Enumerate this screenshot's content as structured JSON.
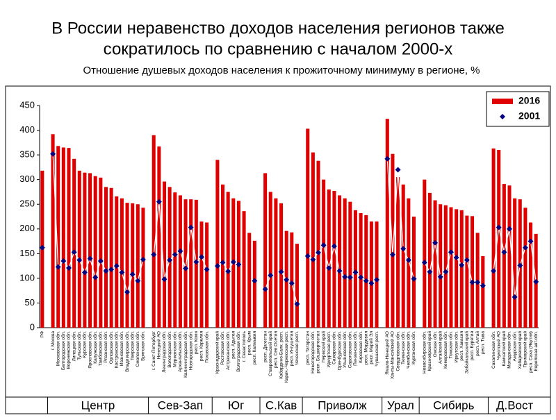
{
  "chart_data": {
    "type": "bar",
    "title": [
      "В России неравенство доходов населения регионов также",
      "сократилось по сравнению с началом 2000-х"
    ],
    "subtitle": "Отношение душевых доходов населения к прожиточному минимуму в регионе, %",
    "categories": [
      "РФ",
      null,
      "г. Москва",
      "Московская обл.",
      "Белгородская обл.",
      "Воронежская обл.",
      "Липецкая обл.",
      "Тульская обл.",
      "Курская обл.",
      "Ярославская обл.",
      "Калужская обл.",
      "Тамбовская обл.",
      "Рязанская обл.",
      "Орловская обл.",
      "Костромская обл.",
      "Ивановская обл.",
      "Владимирская обл.",
      "Тверская обл.",
      "Смоленская обл.",
      "Брянская обл.",
      null,
      "г. Санкт-Петербург",
      "Ненецкий АО",
      "Ленинградская обл.",
      "Вологодская обл.",
      "Мурманская обл.",
      "Архангельская обл.",
      "Калининградская обл.",
      "Новгородская обл.",
      "респ. Коми",
      "респ. Карелия",
      "Псковская обл.",
      null,
      "Краснодарский край",
      "Ростовская обл.",
      "Астраханская обл.",
      "респ. Адыгея",
      "Волгоградская обл.",
      "г. Севастополь",
      "респ. Крым",
      "респ. Калмыкия",
      null,
      "респ. Дагестан",
      "Ставропольский край",
      "респ. Сев.Осетия",
      "Кабардино-Балк. респ.",
      "Карач.-Черкесская респ.",
      "респ. Ингушетия",
      "Чеченская респ.",
      null,
      "респ. Татарстан",
      "Нижегородская обл.",
      "респ. Башкортостан",
      "Пермский край",
      "Удмуртская респ.",
      "Самарская обл.",
      "Оренбургская обл.",
      "Ульяновская обл.",
      "Саратовская обл.",
      "Пензенская обл.",
      "Кировская обл.",
      "респ. Мордовия",
      "респ. Марий Эл",
      "Чувашская респ.",
      null,
      "Ямало-Ненецкий АО",
      "Ханты-Мансийский АО",
      "Свердловская обл.",
      "Тюменская обл.",
      "Челябинская обл.",
      "Курганская обл.",
      null,
      "Новосибирская обл.",
      "Красноярский край",
      "Омская обл.",
      "Алтайский край",
      "Кемеровская обл.",
      "Томская обл.",
      "Иркутская обл.",
      "респ. Хакасия",
      "Забайкальский край",
      "респ. Бурятия",
      "респ. Алтай",
      "респ. Тыва",
      null,
      "Сахалинская обл.",
      "Чукотский АО",
      "Камчатский край",
      "Магаданская обл.",
      "Амурская обл.",
      "Хабаровский край",
      "Приморский край",
      "респ. Саха (Якутия)",
      "Еврейская авт.обл."
    ],
    "series": [
      {
        "name": "2016",
        "color": "#e00000",
        "values": [
          318,
          null,
          392,
          368,
          365,
          364,
          342,
          318,
          314,
          313,
          307,
          304,
          285,
          283,
          266,
          262,
          253,
          252,
          250,
          243,
          null,
          390,
          367,
          296,
          285,
          274,
          268,
          260,
          260,
          259,
          215,
          213,
          null,
          340,
          290,
          275,
          262,
          257,
          236,
          192,
          176,
          null,
          313,
          275,
          262,
          252,
          196,
          193,
          170,
          null,
          403,
          355,
          338,
          300,
          280,
          277,
          268,
          262,
          255,
          238,
          232,
          228,
          215,
          215,
          null,
          423,
          352,
          305,
          290,
          262,
          225,
          null,
          300,
          273,
          258,
          250,
          248,
          244,
          240,
          238,
          227,
          226,
          192,
          145,
          null,
          363,
          360,
          291,
          288,
          262,
          260,
          243,
          213,
          190
        ]
      },
      {
        "name": "2001",
        "color": "#000080",
        "values": [
          162,
          null,
          352,
          123,
          135,
          121,
          153,
          137,
          112,
          140,
          102,
          135,
          115,
          118,
          125,
          112,
          72,
          108,
          95,
          138,
          null,
          148,
          255,
          98,
          137,
          148,
          155,
          120,
          203,
          133,
          143,
          118,
          null,
          125,
          132,
          114,
          133,
          128,
          null,
          null,
          95,
          null,
          78,
          106,
          null,
          113,
          97,
          90,
          48,
          null,
          145,
          138,
          152,
          167,
          121,
          165,
          115,
          103,
          102,
          112,
          102,
          95,
          90,
          97,
          null,
          342,
          148,
          320,
          160,
          137,
          99,
          null,
          132,
          113,
          172,
          103,
          113,
          153,
          142,
          127,
          137,
          92,
          92,
          85,
          null,
          115,
          203,
          153,
          200,
          62,
          126,
          162,
          175,
          93
        ]
      }
    ],
    "groups": [
      "Центр",
      "Сев-Зап",
      "Юг",
      "С.Кав",
      "Приволж",
      "Урал",
      "Сибирь",
      "Д.Вост"
    ],
    "ylim": [
      0,
      450
    ],
    "yticks": [
      0,
      50,
      100,
      150,
      200,
      250,
      300,
      350,
      400,
      450
    ],
    "legend": "top-right"
  }
}
